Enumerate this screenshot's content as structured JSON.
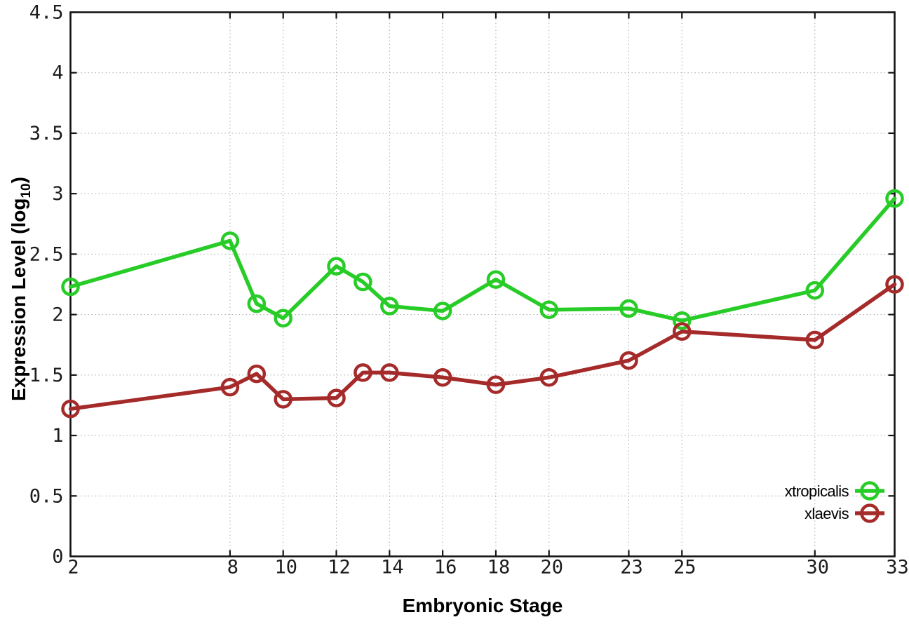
{
  "chart_data": {
    "type": "line",
    "title": "",
    "xlabel": "Embryonic Stage",
    "ylabel_main": "Expression Level (log",
    "ylabel_sub": "10",
    "ylabel_close": ")",
    "xlim": [
      2,
      33
    ],
    "ylim": [
      0,
      4.5
    ],
    "xticks": [
      2,
      8,
      10,
      12,
      14,
      16,
      18,
      20,
      23,
      25,
      30,
      33
    ],
    "yticks": [
      0,
      0.5,
      1,
      1.5,
      2,
      2.5,
      3,
      3.5,
      4,
      4.5
    ],
    "grid": true,
    "grid_style": "dotted",
    "legend_position": "inside-bottom-right",
    "marker": "open-circle",
    "x": [
      2,
      8,
      9,
      10,
      12,
      13,
      14,
      16,
      18,
      20,
      23,
      25,
      30,
      33
    ],
    "series": [
      {
        "name": "xtropicalis",
        "color": "#27cc27",
        "values": [
          2.23,
          2.61,
          2.09,
          1.97,
          2.4,
          2.27,
          2.07,
          2.03,
          2.29,
          2.04,
          2.05,
          1.95,
          2.2,
          2.96
        ]
      },
      {
        "name": "xlaevis",
        "color": "#a52a2a",
        "values": [
          1.22,
          1.4,
          1.51,
          1.3,
          1.31,
          1.52,
          1.52,
          1.48,
          1.42,
          1.48,
          1.62,
          1.86,
          1.79,
          2.25
        ]
      }
    ]
  },
  "style": {
    "border_color": "#141414",
    "grid_color": "#aaaaaa",
    "background": "#ffffff",
    "tick_color": "#141414"
  }
}
